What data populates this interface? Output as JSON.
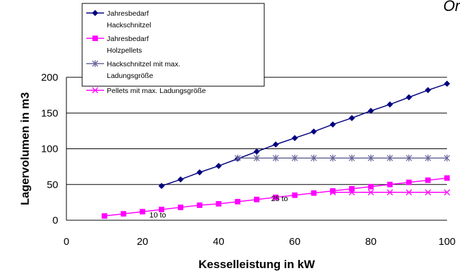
{
  "corner_text": "Or",
  "chart_data": {
    "type": "line",
    "title": "",
    "xlabel": "Kesselleistung in kW",
    "ylabel": "Lagervolumen in m3",
    "xlim": [
      0,
      100
    ],
    "ylim": [
      0,
      200
    ],
    "xticks": [
      0,
      20,
      40,
      60,
      80,
      100
    ],
    "yticks": [
      0,
      50,
      100,
      150,
      200
    ],
    "grid": "horizontal",
    "legend_position": "top-left",
    "series": [
      {
        "name": "Jahresbedarf Hackschnitzel",
        "legend_lines": [
          "Jahresbedarf",
          "Hackschnitzel"
        ],
        "color": "#000080",
        "marker": "diamond",
        "x": [
          25,
          30,
          35,
          40,
          45,
          50,
          55,
          60,
          65,
          70,
          75,
          80,
          85,
          90,
          95,
          100
        ],
        "y": [
          48,
          57,
          67,
          76,
          86,
          96,
          106,
          115,
          124,
          134,
          143,
          153,
          162,
          172,
          182,
          191
        ]
      },
      {
        "name": "Jahresbedarf Holzpellets",
        "legend_lines": [
          "Jahresbedarf",
          "Holzpellets"
        ],
        "color": "#FF00FF",
        "marker": "square",
        "x": [
          10,
          15,
          20,
          25,
          30,
          35,
          40,
          45,
          50,
          55,
          60,
          65,
          70,
          75,
          80,
          85,
          90,
          95,
          100
        ],
        "y": [
          6,
          9,
          12,
          15,
          18,
          21,
          23,
          26,
          29,
          32,
          35,
          38,
          41,
          44,
          47,
          50,
          53,
          56,
          59
        ]
      },
      {
        "name": "Hackschnitzel mit max. Ladungsgröße",
        "legend_lines": [
          "Hackschnitzel mit max.",
          "Ladungsgröße"
        ],
        "color": "#666699",
        "marker": "asterisk",
        "x": [
          45,
          50,
          55,
          60,
          65,
          70,
          75,
          80,
          85,
          90,
          95,
          100
        ],
        "y": [
          87,
          87,
          87,
          87,
          87,
          87,
          87,
          87,
          87,
          87,
          87,
          87
        ]
      },
      {
        "name": "Pellets mit max. Ladungsgröße",
        "legend_lines": [
          "Pellets mit max. Ladungsgröße"
        ],
        "color": "#FF00FF",
        "marker": "x",
        "x": [
          70,
          75,
          80,
          85,
          90,
          95,
          100
        ],
        "y": [
          39,
          39,
          39,
          39,
          39,
          39,
          39
        ]
      }
    ],
    "annotations": [
      {
        "text": "10 to",
        "x": 24,
        "y": 4
      },
      {
        "text": "25 to",
        "x": 56,
        "y": 27
      }
    ]
  }
}
